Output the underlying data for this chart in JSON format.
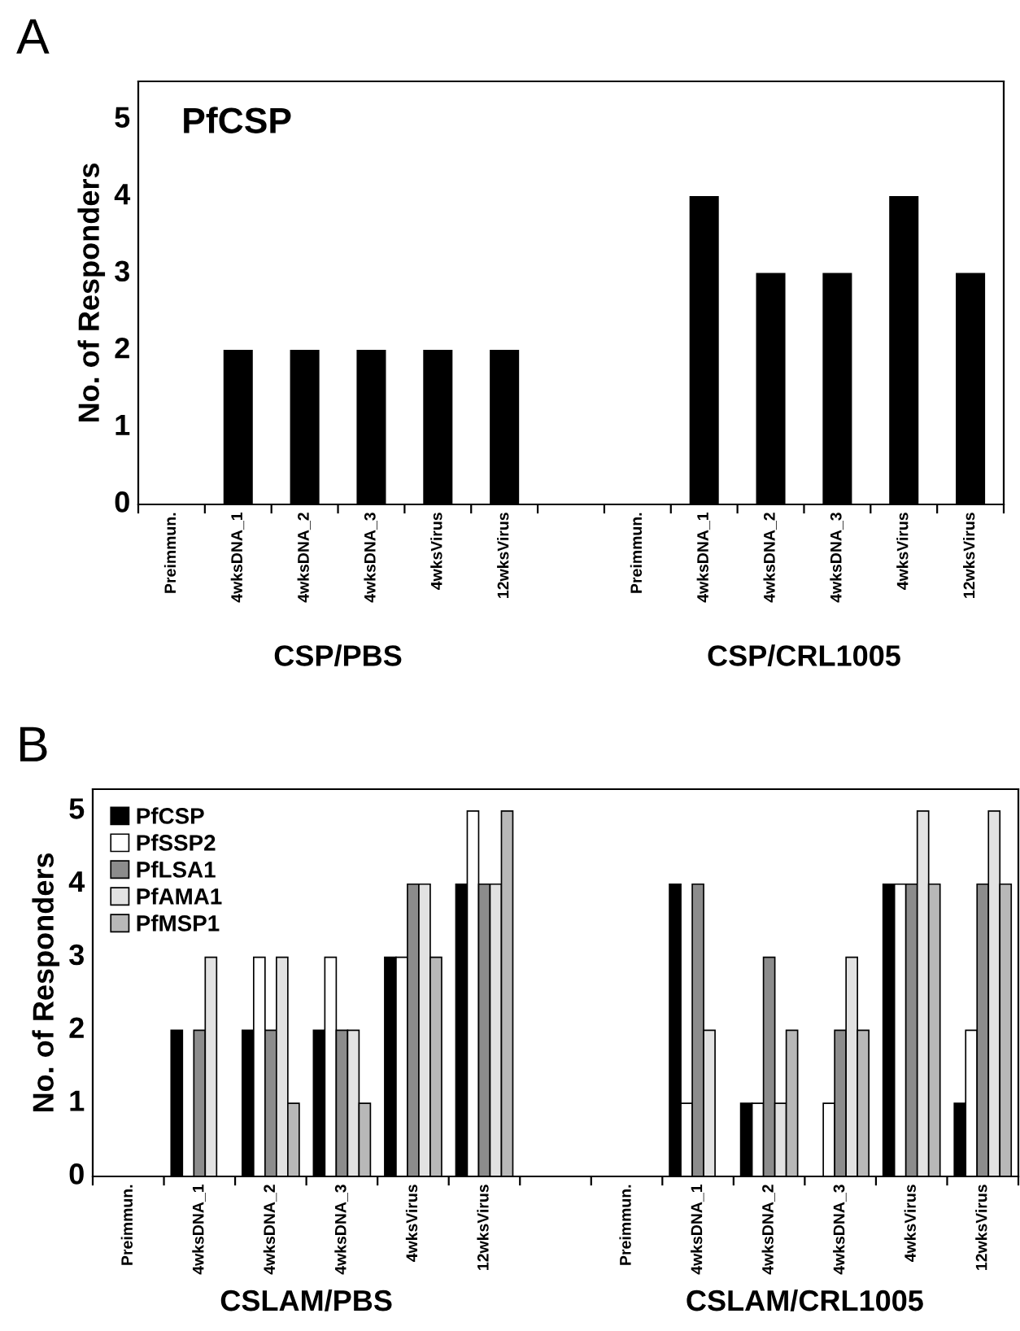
{
  "chart_data": [
    {
      "type": "bar",
      "title": "PfCSP",
      "ylabel": "No. of Responders",
      "categories": [
        "Preimmun.",
        "4wksDNA_1",
        "4wksDNA_2",
        "4wksDNA_3",
        "4wksVirus",
        "12wksVirus",
        null,
        "Preimmun.",
        "4wksDNA_1",
        "4wksDNA_2",
        "4wksDNA_3",
        "4wksVirus",
        "12wksVirus"
      ],
      "series": [
        {
          "color": "#000000",
          "values": [
            0,
            2,
            2,
            2,
            2,
            2,
            null,
            0,
            4,
            3,
            3,
            4,
            3
          ]
        }
      ],
      "ylim": [
        0,
        5.5
      ],
      "yticks": [
        0,
        1,
        2,
        3,
        4,
        5
      ],
      "grid": false,
      "legend": false,
      "annotations": [
        "A",
        "CSP/PBS",
        "CSP/CRL1005"
      ]
    },
    {
      "type": "bar",
      "ylabel": "No. of Responders",
      "categories": [
        "Preimmun.",
        "4wksDNA_1",
        "4wksDNA_2",
        "4wksDNA_3",
        "4wksVirus",
        "12wksVirus",
        null,
        "Preimmun.",
        "4wksDNA_1",
        "4wksDNA_2",
        "4wksDNA_3",
        "4wksVirus",
        "12wksVirus"
      ],
      "series": [
        {
          "name": "PfCSP",
          "color": "#000000",
          "values": [
            0,
            2,
            2,
            2,
            3,
            4,
            null,
            0,
            4,
            1,
            0,
            4,
            1
          ]
        },
        {
          "name": "PfSSP2",
          "color": "#ffffff",
          "values": [
            0,
            0,
            3,
            3,
            3,
            5,
            null,
            0,
            1,
            1,
            1,
            4,
            2
          ]
        },
        {
          "name": "PfLSA1",
          "color": "#8c8c8c",
          "values": [
            0,
            2,
            2,
            2,
            4,
            4,
            null,
            0,
            4,
            3,
            2,
            4,
            4
          ]
        },
        {
          "name": "PfAMA1",
          "color": "#e2e2e2",
          "values": [
            0,
            3,
            3,
            2,
            4,
            4,
            null,
            0,
            2,
            1,
            3,
            5,
            5
          ]
        },
        {
          "name": "PfMSP1",
          "color": "#b8b8b8",
          "values": [
            0,
            0,
            1,
            1,
            3,
            5,
            null,
            0,
            0,
            2,
            2,
            4,
            4
          ]
        }
      ],
      "ylim": [
        0,
        5.3
      ],
      "yticks": [
        0,
        1,
        2,
        3,
        4,
        5
      ],
      "grid": false,
      "legend": "top left",
      "annotations": [
        "B",
        "CSLAM/PBS",
        "CSLAM/CRL1005"
      ]
    }
  ]
}
